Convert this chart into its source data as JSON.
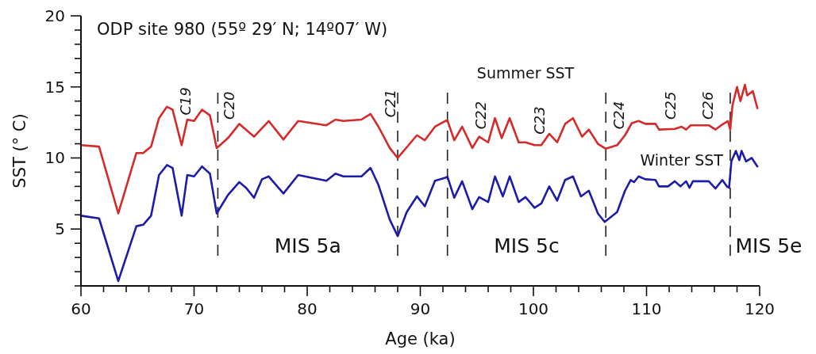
{
  "chart_data": {
    "type": "line",
    "title": "ODP site 980 (55º 29′ N; 14º07′ W)",
    "xlabel": "Age (ka)",
    "ylabel": "SST (° C)",
    "xlim": [
      60,
      120
    ],
    "ylim": [
      1,
      20
    ],
    "xticks": [
      60,
      {
        "value": 62,
        "label": null
      },
      {
        "value": 64,
        "label": null
      },
      {
        "value": 66,
        "label": null
      },
      {
        "value": 68,
        "label": null
      },
      70,
      {
        "value": 72,
        "label": null
      },
      {
        "value": 74,
        "label": null
      },
      {
        "value": 76,
        "label": null
      },
      {
        "value": 78,
        "label": null
      },
      80,
      {
        "value": 82,
        "label": null
      },
      {
        "value": 84,
        "label": null
      },
      {
        "value": 86,
        "label": null
      },
      {
        "value": 88,
        "label": null
      },
      90,
      {
        "value": 92,
        "label": null
      },
      {
        "value": 94,
        "label": null
      },
      {
        "value": 96,
        "label": null
      },
      {
        "value": 98,
        "label": null
      },
      100,
      {
        "value": 102,
        "label": null
      },
      {
        "value": 104,
        "label": null
      },
      {
        "value": 106,
        "label": null
      },
      {
        "value": 108,
        "label": null
      },
      110,
      {
        "value": 112,
        "label": null
      },
      {
        "value": 114,
        "label": null
      },
      {
        "value": 116,
        "label": null
      },
      {
        "value": 118,
        "label": null
      },
      120
    ],
    "yticks": [
      {
        "value": 1,
        "label": null
      },
      {
        "value": 2,
        "label": null
      },
      {
        "value": 3,
        "label": null
      },
      {
        "value": 4,
        "label": null
      },
      5,
      {
        "value": 6,
        "label": null
      },
      {
        "value": 7,
        "label": null
      },
      {
        "value": 8,
        "label": null
      },
      {
        "value": 9,
        "label": null
      },
      10,
      {
        "value": 11,
        "label": null
      },
      {
        "value": 12,
        "label": null
      },
      {
        "value": 13,
        "label": null
      },
      {
        "value": 14,
        "label": null
      },
      15,
      {
        "value": 16,
        "label": null
      },
      {
        "value": 17,
        "label": null
      },
      {
        "value": 18,
        "label": null
      },
      {
        "value": 19,
        "label": null
      },
      20
    ],
    "grid": false,
    "marker": "none",
    "line_style": "solid",
    "series": [
      {
        "name": "Summer SST",
        "color": "#d42a2a",
        "x": [
          60,
          61.6,
          63.3,
          64.9,
          65.5,
          66.2,
          66.9,
          67.6,
          68.1,
          68.9,
          69.4,
          70,
          70.7,
          71.4,
          72,
          73,
          74,
          75.3,
          76.6,
          77.9,
          79.2,
          81.7,
          82.5,
          83.2,
          84.8,
          85.6,
          86.3,
          87.3,
          88,
          89.7,
          90.4,
          91.3,
          92.2,
          92.4,
          93,
          93.7,
          94.6,
          95.2,
          96,
          96.6,
          97.2,
          97.9,
          98.7,
          99.3,
          100.1,
          100.7,
          101.4,
          102.1,
          102.8,
          103.5,
          104.3,
          104.9,
          105.7,
          106.4,
          107.4,
          108.1,
          108.7,
          109.3,
          109.9,
          110.8,
          111.1,
          112.5,
          113.1,
          113.5,
          113.9,
          115.5,
          116.1,
          116.6,
          117.2,
          117.4,
          117.6,
          118,
          118.3,
          118.7,
          118.9,
          119.4,
          119.8
        ],
        "values": [
          10.9,
          10.8,
          6.1,
          10.35,
          10.35,
          10.8,
          12.8,
          13.6,
          13.4,
          10.9,
          12.7,
          12.6,
          13.4,
          13,
          10.7,
          11.4,
          12.4,
          11.5,
          12.6,
          11.3,
          12.6,
          12.3,
          12.7,
          12.6,
          12.7,
          13.1,
          12.2,
          10.7,
          10,
          11.6,
          11.25,
          12.2,
          12.6,
          12.64,
          11.25,
          12.2,
          10.7,
          11.5,
          11.1,
          12.8,
          11.4,
          12.8,
          11.1,
          11.1,
          10.9,
          10.9,
          11.7,
          11.1,
          12.4,
          12.8,
          11.5,
          12,
          11,
          10.65,
          10.9,
          11.6,
          12.45,
          12.6,
          12.4,
          12.4,
          12,
          12.05,
          12.2,
          12,
          12.3,
          12.3,
          12,
          12.3,
          12.6,
          12,
          13.7,
          15,
          14,
          15.15,
          14.4,
          14.7,
          13.5
        ]
      },
      {
        "name": "Winter SST",
        "color": "#1c1caa",
        "x": [
          60,
          61.6,
          63.3,
          64.9,
          65.5,
          66.2,
          66.9,
          67.6,
          68.1,
          68.9,
          69.4,
          70,
          70.7,
          71.4,
          72,
          73,
          74,
          74.6,
          75.3,
          76,
          76.6,
          77.9,
          79.2,
          81.7,
          82.5,
          83.2,
          84.8,
          85.6,
          86.3,
          87.3,
          88,
          88.8,
          89.7,
          90.4,
          91.3,
          92.2,
          92.4,
          93,
          93.7,
          94.6,
          95.2,
          96,
          96.6,
          97.3,
          97.9,
          98.7,
          99.3,
          100.1,
          100.7,
          101.4,
          102.1,
          102.8,
          103.5,
          104.2,
          104.9,
          105.7,
          106.3,
          107.4,
          108.1,
          108.6,
          108.9,
          109.3,
          109.9,
          110.8,
          111.1,
          111.9,
          112.5,
          113,
          113.5,
          113.8,
          114.1,
          115.5,
          116.1,
          116.7,
          117.1,
          117.3,
          117.5,
          117.9,
          118.2,
          118.4,
          118.8,
          119.3,
          119.8
        ],
        "values": [
          5.94,
          5.75,
          1.34,
          5.2,
          5.3,
          5.94,
          8.8,
          9.5,
          9.3,
          5.94,
          8.8,
          8.7,
          9.4,
          8.9,
          6.1,
          7.4,
          8.3,
          7.9,
          7.2,
          8.5,
          8.7,
          7.5,
          8.8,
          8.4,
          8.9,
          8.7,
          8.7,
          9.3,
          8.1,
          5.66,
          4.5,
          6.2,
          7.3,
          6.6,
          8.4,
          8.6,
          8.68,
          7.2,
          8.36,
          6.4,
          7.25,
          6.9,
          8.7,
          7.3,
          8.7,
          6.9,
          7.25,
          6.5,
          6.8,
          8,
          7,
          8.45,
          8.7,
          7.3,
          7.7,
          6.1,
          5.5,
          6.2,
          7.7,
          8.45,
          8.3,
          8.7,
          8.5,
          8.45,
          8,
          8,
          8.36,
          8,
          8.36,
          7.9,
          8.36,
          8.36,
          7.85,
          8.45,
          8,
          7.9,
          9.76,
          10.5,
          9.85,
          10.5,
          9.76,
          10,
          9.4
        ]
      }
    ],
    "ref_lines": [
      {
        "axis": "x",
        "value": 72.1,
        "line_style": "dashed",
        "color": "#222222"
      },
      {
        "axis": "x",
        "value": 88,
        "line_style": "dashed",
        "color": "#222222"
      },
      {
        "axis": "x",
        "value": 92.4,
        "line_style": "dashed",
        "color": "#222222"
      },
      {
        "axis": "x",
        "value": 106.4,
        "line_style": "dashed",
        "color": "#222222"
      },
      {
        "axis": "x",
        "value": 117.4,
        "line_style": "dashed",
        "color": "#222222"
      }
    ],
    "annotations": [
      "C19",
      "C20",
      "C21",
      "C22",
      "C23",
      "C24",
      "C25",
      "C26",
      "MIS 5a",
      "MIS 5c",
      "MIS 5e"
    ]
  }
}
